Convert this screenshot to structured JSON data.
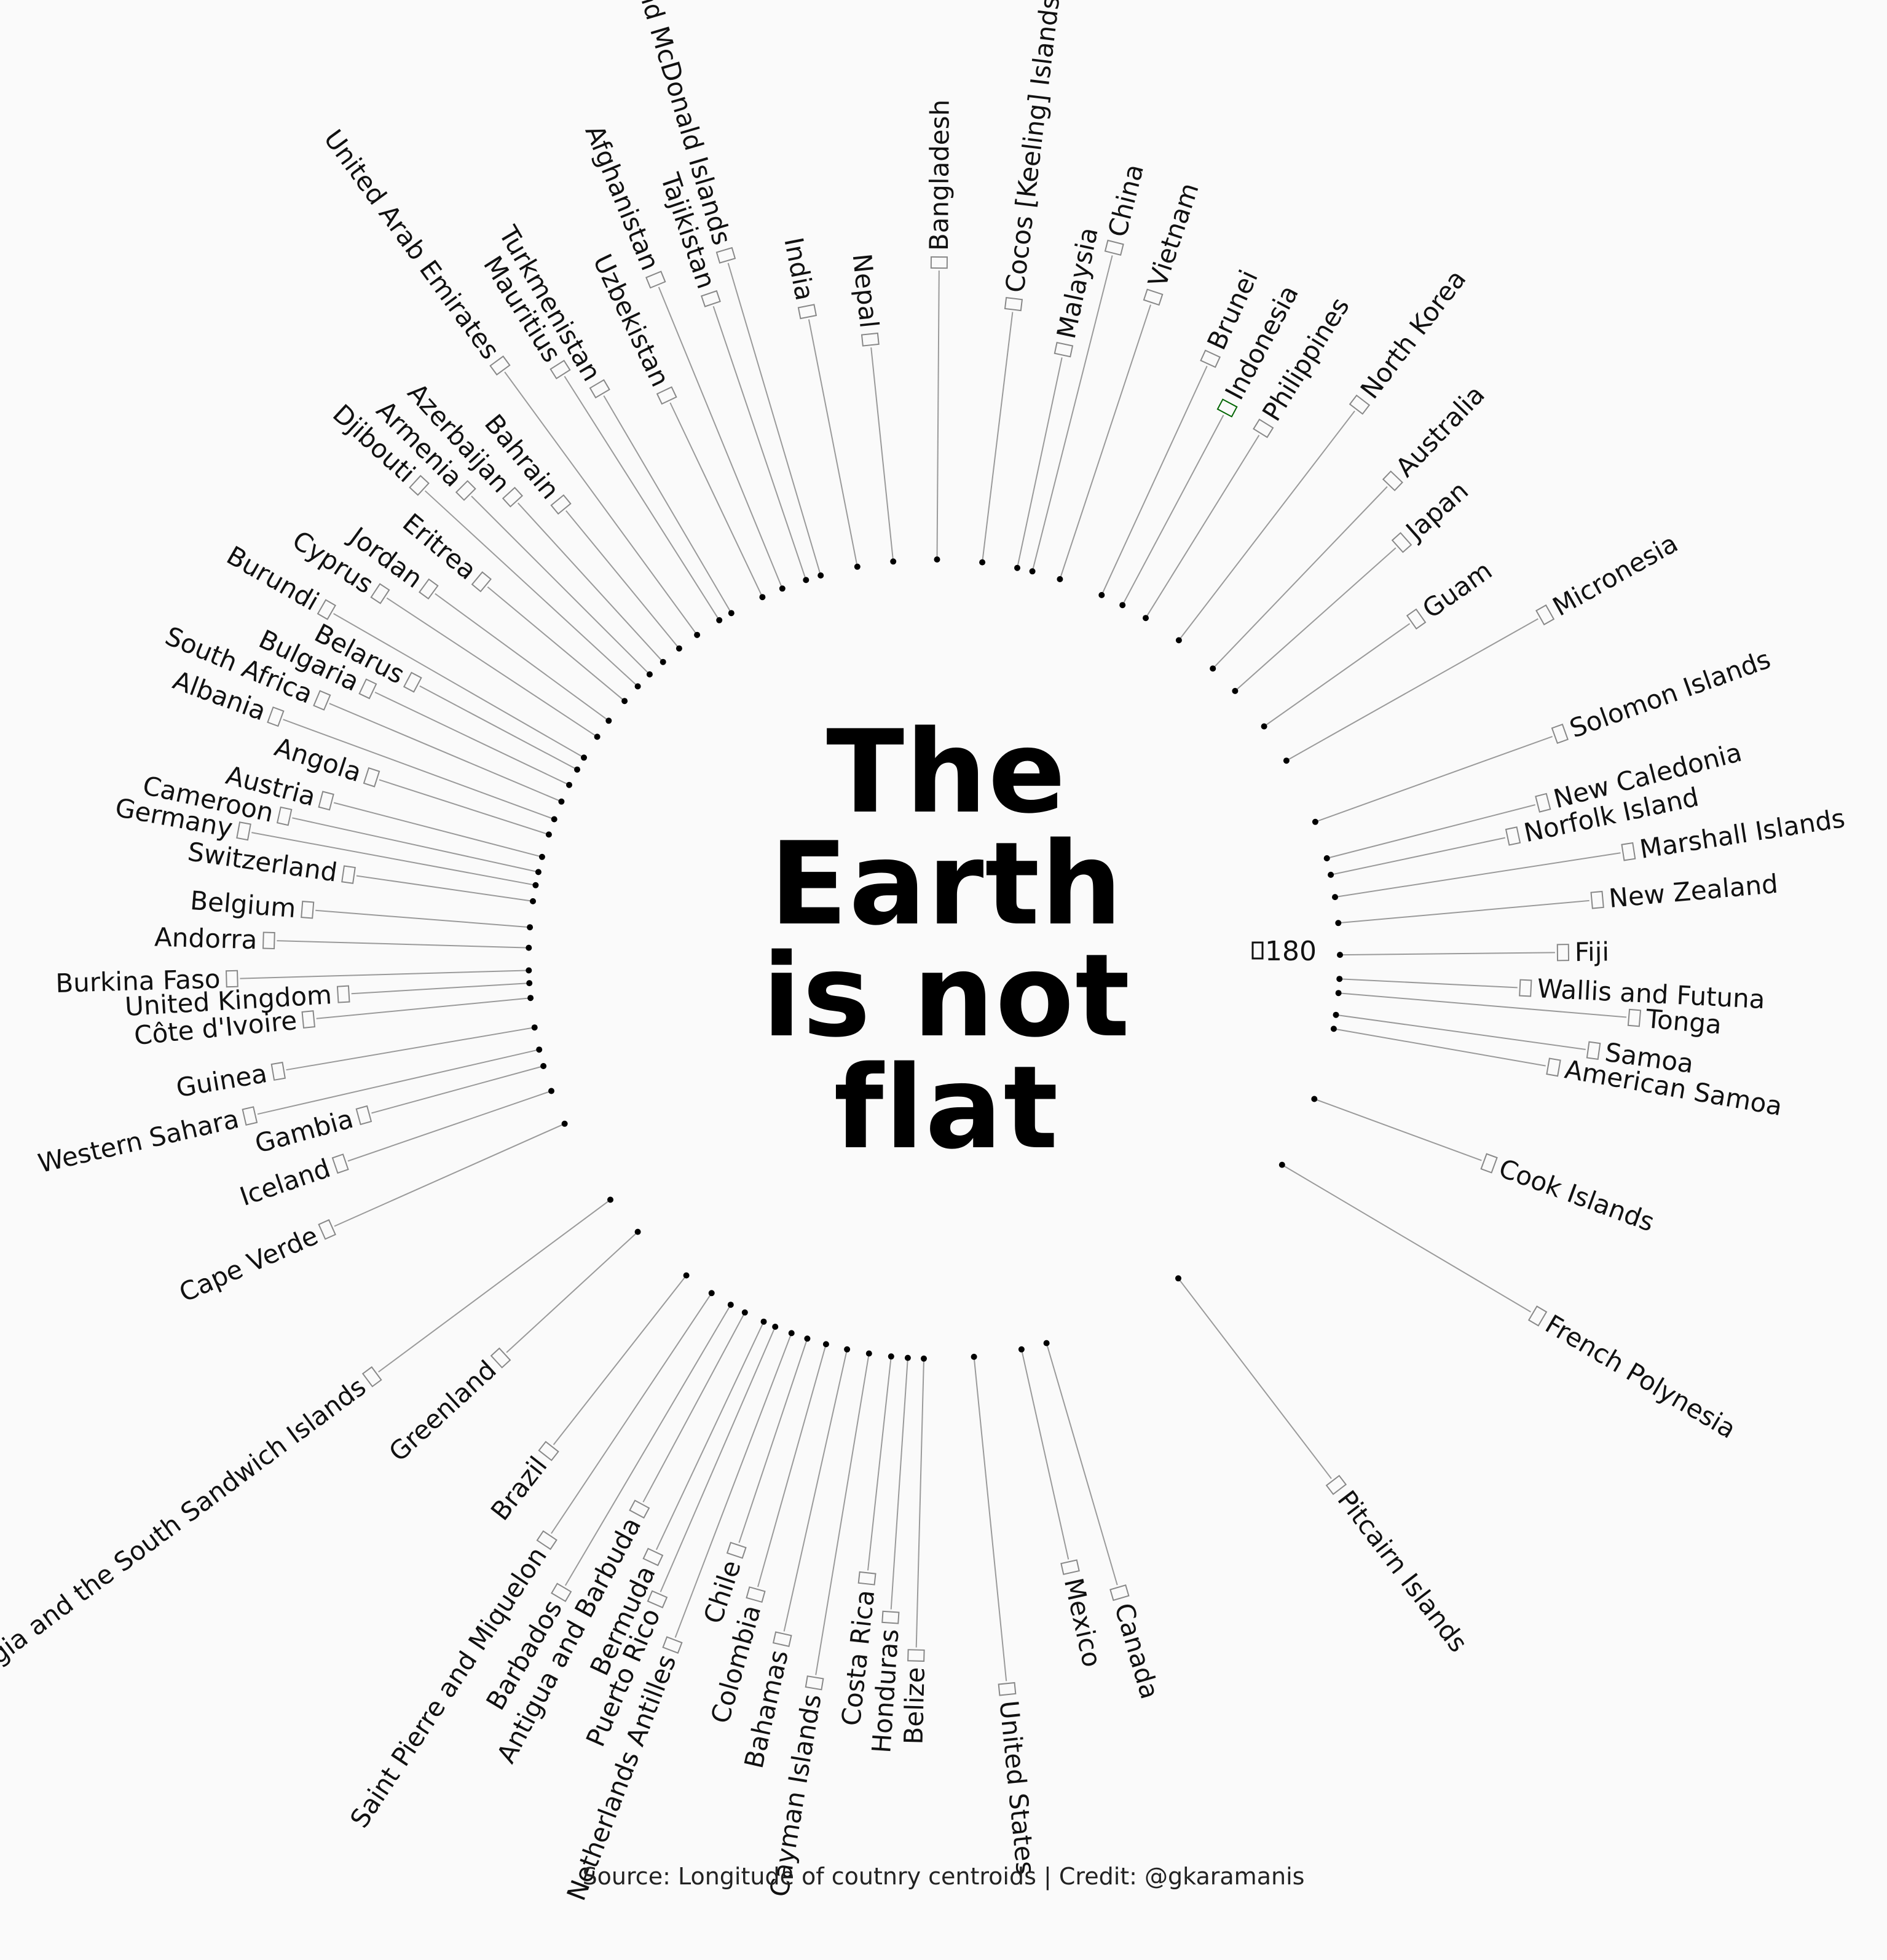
{
  "title_lines": [
    "The",
    "Earth",
    "is not",
    "flat"
  ],
  "caption": "Source: Longitude of coutnry centroids | Credit: @gkaramanis",
  "colors": {
    "background": "#fafafa",
    "text": "#111111",
    "highlight": "#006400",
    "leader": "#9a9a9a"
  },
  "chart_data": {
    "type": "scatter",
    "coordinate_system": "polar",
    "value": "longitude of country centroid",
    "ring_label": "180",
    "icon": "flag-icon",
    "countries": [
      {
        "name": "Indonesia",
        "lon": 118,
        "highlight": true
      },
      {
        "name": "Cocos [Keeling] Islands",
        "lon": 96.9
      },
      {
        "name": "Bangladesh",
        "lon": 90.4
      },
      {
        "name": "Heard Island and McDonald Islands",
        "lon": 73.5
      },
      {
        "name": "Nepal",
        "lon": 84.1
      },
      {
        "name": "India",
        "lon": 78.9
      },
      {
        "name": "Tajikistan",
        "lon": 71.3
      },
      {
        "name": "Afghanistan",
        "lon": 67.7
      },
      {
        "name": "Uzbekistan",
        "lon": 64.6
      },
      {
        "name": "Turkmenistan",
        "lon": 59.6
      },
      {
        "name": "Mauritius",
        "lon": 57.6
      },
      {
        "name": "United Arab Emirates",
        "lon": 53.8
      },
      {
        "name": "Bahrain",
        "lon": 50.6
      },
      {
        "name": "Azerbaijan",
        "lon": 47.6
      },
      {
        "name": "Armenia",
        "lon": 45.0
      },
      {
        "name": "Djibouti",
        "lon": 42.6
      },
      {
        "name": "Eritrea",
        "lon": 39.8
      },
      {
        "name": "Jordan",
        "lon": 36.2
      },
      {
        "name": "Cyprus",
        "lon": 33.4
      },
      {
        "name": "Burundi",
        "lon": 29.9
      },
      {
        "name": "Belarus",
        "lon": 27.95
      },
      {
        "name": "Bulgaria",
        "lon": 25.5
      },
      {
        "name": "South Africa",
        "lon": 22.9
      },
      {
        "name": "Albania",
        "lon": 20.2
      },
      {
        "name": "Angola",
        "lon": 17.9
      },
      {
        "name": "Austria",
        "lon": 14.6
      },
      {
        "name": "Cameroon",
        "lon": 12.4
      },
      {
        "name": "Germany",
        "lon": 10.5
      },
      {
        "name": "Switzerland",
        "lon": 8.2
      },
      {
        "name": "Belgium",
        "lon": 4.5
      },
      {
        "name": "Andorra",
        "lon": 1.6
      },
      {
        "name": "Burkina Faso",
        "lon": -1.6
      },
      {
        "name": "United Kingdom",
        "lon": -3.4
      },
      {
        "name": "Côte d'Ivoire",
        "lon": -5.5
      },
      {
        "name": "Guinea",
        "lon": -9.7
      },
      {
        "name": "Western Sahara",
        "lon": -12.9
      },
      {
        "name": "Gambia",
        "lon": -15.3
      },
      {
        "name": "Iceland",
        "lon": -19.0
      },
      {
        "name": "Cape Verde",
        "lon": -24.0
      },
      {
        "name": "South Georgia and the South Sandwich Islands",
        "lon": -36.6
      },
      {
        "name": "Greenland",
        "lon": -42.6
      },
      {
        "name": "Brazil",
        "lon": -51.9
      },
      {
        "name": "Saint Pierre and Miquelon",
        "lon": -56.3
      },
      {
        "name": "Barbados",
        "lon": -59.5
      },
      {
        "name": "Antigua and Barbuda",
        "lon": -61.8
      },
      {
        "name": "Bermuda",
        "lon": -64.8
      },
      {
        "name": "Puerto Rico",
        "lon": -66.6
      },
      {
        "name": "Netherlands Antilles",
        "lon": -69.1
      },
      {
        "name": "Chile",
        "lon": -71.5
      },
      {
        "name": "Colombia",
        "lon": -74.3
      },
      {
        "name": "Bahamas",
        "lon": -77.4
      },
      {
        "name": "Cayman Islands",
        "lon": -80.6
      },
      {
        "name": "Costa Rica",
        "lon": -83.8
      },
      {
        "name": "Honduras",
        "lon": -86.2
      },
      {
        "name": "Belize",
        "lon": -88.5
      },
      {
        "name": "United States",
        "lon": -95.7
      },
      {
        "name": "Mexico",
        "lon": -102.6
      },
      {
        "name": "Canada",
        "lon": -106.3
      },
      {
        "name": "Pitcairn Islands",
        "lon": -127.4
      },
      {
        "name": "French Polynesia",
        "lon": -149.4
      },
      {
        "name": "Cook Islands",
        "lon": -159.8
      },
      {
        "name": "American Samoa",
        "lon": -170.1
      },
      {
        "name": "Samoa",
        "lon": -172.1
      },
      {
        "name": "Tonga",
        "lon": -175.2
      },
      {
        "name": "Wallis and Futuna",
        "lon": -177.2
      },
      {
        "name": "Fiji",
        "lon": 179.4
      },
      {
        "name": "New Zealand",
        "lon": 174.9
      },
      {
        "name": "Marshall Islands",
        "lon": 171.2
      },
      {
        "name": "Norfolk Island",
        "lon": 168.0
      },
      {
        "name": "New Caledonia",
        "lon": 165.6
      },
      {
        "name": "Solomon Islands",
        "lon": 160.2
      },
      {
        "name": "Micronesia",
        "lon": 150.6
      },
      {
        "name": "Guam",
        "lon": 144.8
      },
      {
        "name": "Japan",
        "lon": 138.3
      },
      {
        "name": "Australia",
        "lon": 133.8
      },
      {
        "name": "North Korea",
        "lon": 127.5
      },
      {
        "name": "Philippines",
        "lon": 121.8
      },
      {
        "name": "Brunei",
        "lon": 114.7
      },
      {
        "name": "Vietnam",
        "lon": 108.3
      },
      {
        "name": "China",
        "lon": 104.2
      },
      {
        "name": "Malaysia",
        "lon": 101.98
      }
    ]
  }
}
